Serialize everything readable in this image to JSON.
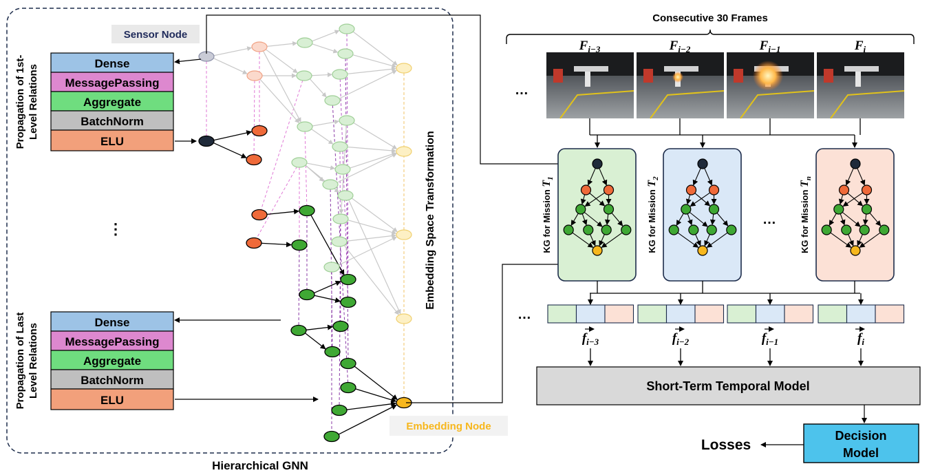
{
  "left_panel": {
    "title": "Hierarchical GNN",
    "sensor_label": "Sensor Node",
    "embedding_label": "Embedding Node",
    "vertical_label": "Embedding Space Transformation",
    "first_block": {
      "side_label_line1": "Propagation of 1st-",
      "side_label_line2": "Level Relations",
      "layers": [
        "Dense",
        "MessagePassing",
        "Aggregate",
        "BatchNorm",
        "ELU"
      ]
    },
    "last_block": {
      "side_label_line1": "Propagation of Last",
      "side_label_line2": "Level Relations",
      "layers": [
        "Dense",
        "MessagePassing",
        "Aggregate",
        "BatchNorm",
        "ELU"
      ]
    },
    "ellipsis": "⋮"
  },
  "frames": {
    "title": "Consecutive 30 Frames",
    "ellipsis": "…",
    "items": [
      {
        "base": "F",
        "sub": "i−3"
      },
      {
        "base": "F",
        "sub": "i−2"
      },
      {
        "base": "F",
        "sub": "i−1"
      },
      {
        "base": "F",
        "sub": "i"
      }
    ]
  },
  "kgs": {
    "ellipsis": "…",
    "items": [
      {
        "label": "KG for Mission ",
        "sym": "T",
        "sub": "1"
      },
      {
        "label": "KG for Mission ",
        "sym": "T",
        "sub": "2"
      },
      {
        "label": "KG for Mission ",
        "sym": "T",
        "sub": "n"
      }
    ]
  },
  "features": {
    "ellipsis": "…",
    "items": [
      {
        "base": "f",
        "sub": "i−3"
      },
      {
        "base": "f",
        "sub": "i−2"
      },
      {
        "base": "f",
        "sub": "i−1"
      },
      {
        "base": "f",
        "sub": "i"
      }
    ]
  },
  "temporal_model": "Short-Term Temporal Model",
  "decision_model_line1": "Decision",
  "decision_model_line2": "Model",
  "losses": "Losses",
  "colors": {
    "dense": "#9dc3e6",
    "messagepassing": "#dd88cf",
    "aggregate": "#6fdd7f",
    "batchnorm": "#bfbfbf",
    "elu": "#f2a07b",
    "kg_green": "#d9f0d3",
    "kg_blue": "#dae8f7",
    "kg_peach": "#fce1d6",
    "decision": "#4dc3ec",
    "node_dark": "#1f2a3a",
    "node_orange": "#ef6a3a",
    "node_green": "#3fa834",
    "node_yellow": "#f7b71d"
  }
}
